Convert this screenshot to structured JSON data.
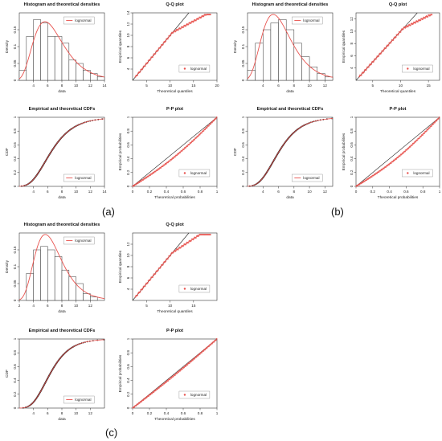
{
  "labels": {
    "a": "(a)",
    "b": "(b)",
    "c": "(c)"
  },
  "colors": {
    "red": "#e8534f",
    "frame": "#333333",
    "bar": "#ffffff",
    "fit": "#cc2b2b"
  },
  "chart_data": [
    {
      "panel": "a",
      "type": "histogram",
      "title": "Histogram and theoretical densities",
      "xlabel": "data",
      "ylabel": "Density",
      "xlim": [
        2,
        14
      ],
      "ylim": [
        0,
        0.2
      ],
      "xticks": [
        4,
        6,
        8,
        10,
        12,
        14
      ],
      "yticks": [
        0,
        0.05,
        0.1,
        0.15
      ],
      "bins": [
        [
          2,
          3,
          0.03
        ],
        [
          3,
          4,
          0.13
        ],
        [
          4,
          5,
          0.18
        ],
        [
          5,
          6,
          0.17
        ],
        [
          6,
          7,
          0.13
        ],
        [
          7,
          8,
          0.13
        ],
        [
          8,
          9,
          0.11
        ],
        [
          9,
          10,
          0.06
        ],
        [
          10,
          11,
          0.05
        ],
        [
          11,
          12,
          0.03
        ],
        [
          12,
          13,
          0.02
        ],
        [
          13,
          14,
          0.01
        ]
      ],
      "fit": {
        "name": "lognormal",
        "meanlog": 1.87,
        "sdlog": 0.38
      }
    },
    {
      "panel": "a",
      "type": "scatter",
      "title": "Q-Q plot",
      "xlabel": "Theoretical quantiles",
      "ylabel": "Empirical quantiles",
      "xlim": [
        2,
        20
      ],
      "ylim": [
        2,
        14
      ],
      "xticks": [
        5,
        10,
        15,
        20
      ],
      "yticks": [
        4,
        6,
        8,
        10,
        12,
        14
      ],
      "legend": "lognormal",
      "kind": "qq",
      "tail": "down"
    },
    {
      "panel": "a",
      "type": "line",
      "title": "Empirical and theoretical CDFs",
      "xlabel": "data",
      "ylabel": "CDF",
      "xlim": [
        2,
        14
      ],
      "ylim": [
        0,
        1
      ],
      "xticks": [
        4,
        6,
        8,
        10,
        12,
        14
      ],
      "yticks": [
        0,
        0.2,
        0.4,
        0.6,
        0.8,
        1
      ],
      "legend": "lognormal",
      "fit": {
        "meanlog": 1.87,
        "sdlog": 0.38
      }
    },
    {
      "panel": "a",
      "type": "scatter",
      "title": "P-P plot",
      "xlabel": "Theoretical probabilities",
      "ylabel": "Empirical probabilities",
      "xlim": [
        0,
        1
      ],
      "ylim": [
        0,
        1
      ],
      "xticks": [
        0,
        0.2,
        0.4,
        0.6,
        0.8,
        1
      ],
      "yticks": [
        0,
        0.2,
        0.4,
        0.6,
        0.8,
        1
      ],
      "legend": "lognormal",
      "kind": "pp",
      "sag": 0.07
    },
    {
      "panel": "b",
      "type": "histogram",
      "title": "Histogram and theoretical densities",
      "xlabel": "data",
      "ylabel": "Density",
      "xlim": [
        2,
        13
      ],
      "ylim": [
        0,
        0.2
      ],
      "xticks": [
        4,
        6,
        8,
        10,
        12
      ],
      "yticks": [
        0,
        0.05,
        0.1,
        0.15
      ],
      "bins": [
        [
          2,
          3,
          0.03
        ],
        [
          3,
          4,
          0.11
        ],
        [
          4,
          5,
          0.15
        ],
        [
          5,
          6,
          0.17
        ],
        [
          6,
          7,
          0.18
        ],
        [
          7,
          8,
          0.15
        ],
        [
          8,
          9,
          0.11
        ],
        [
          9,
          10,
          0.07
        ],
        [
          10,
          11,
          0.04
        ],
        [
          11,
          12,
          0.02
        ],
        [
          12,
          13,
          0.01
        ]
      ],
      "fit": {
        "name": "lognormal",
        "meanlog": 1.8,
        "sdlog": 0.36
      }
    },
    {
      "panel": "b",
      "type": "scatter",
      "title": "Q-Q plot",
      "xlabel": "Theoretical quantiles",
      "ylabel": "Empirical quantiles",
      "xlim": [
        2,
        17
      ],
      "ylim": [
        2,
        13
      ],
      "xticks": [
        5,
        10,
        15
      ],
      "yticks": [
        4,
        6,
        8,
        10,
        12
      ],
      "legend": "lognormal",
      "kind": "qq",
      "tail": "down"
    },
    {
      "panel": "b",
      "type": "line",
      "title": "Empirical and theoretical CDFs",
      "xlabel": "data",
      "ylabel": "CDF",
      "xlim": [
        2,
        13
      ],
      "ylim": [
        0,
        1
      ],
      "xticks": [
        4,
        6,
        8,
        10,
        12
      ],
      "yticks": [
        0,
        0.2,
        0.4,
        0.6,
        0.8,
        1
      ],
      "legend": "lognormal",
      "fit": {
        "meanlog": 1.8,
        "sdlog": 0.36
      }
    },
    {
      "panel": "b",
      "type": "scatter",
      "title": "P-P plot",
      "xlabel": "Theoretical probabilities",
      "ylabel": "Empirical probabilities",
      "xlim": [
        0,
        1
      ],
      "ylim": [
        0,
        1
      ],
      "xticks": [
        0,
        0.2,
        0.4,
        0.6,
        0.8,
        1
      ],
      "yticks": [
        0,
        0.2,
        0.4,
        0.6,
        0.8,
        1
      ],
      "legend": "lognormal",
      "kind": "pp",
      "sag": 0.08
    },
    {
      "panel": "c",
      "type": "histogram",
      "title": "Histogram and theoretical densities",
      "xlabel": "data",
      "ylabel": "Density",
      "xlim": [
        2,
        14
      ],
      "ylim": [
        0,
        0.2
      ],
      "xticks": [
        2,
        4,
        6,
        8,
        10,
        12
      ],
      "yticks": [
        0,
        0.05,
        0.1,
        0.15
      ],
      "bins": [
        [
          3,
          4,
          0.08
        ],
        [
          4,
          5,
          0.15
        ],
        [
          5,
          6,
          0.16
        ],
        [
          6,
          7,
          0.15
        ],
        [
          7,
          8,
          0.13
        ],
        [
          8,
          9,
          0.09
        ],
        [
          9,
          10,
          0.07
        ],
        [
          10,
          11,
          0.05
        ],
        [
          11,
          12,
          0.02
        ],
        [
          12,
          13,
          0.01
        ]
      ],
      "fit": {
        "name": "lognormal",
        "meanlog": 1.85,
        "sdlog": 0.34
      }
    },
    {
      "panel": "c",
      "type": "scatter",
      "title": "Q-Q plot",
      "xlabel": "Theoretical quantiles",
      "ylabel": "Empirical quantiles",
      "xlim": [
        2,
        20
      ],
      "ylim": [
        2,
        14
      ],
      "xticks": [
        5,
        10,
        15
      ],
      "yticks": [
        4,
        6,
        8,
        10,
        12
      ],
      "legend": "lognormal",
      "kind": "qq",
      "tail": "up"
    },
    {
      "panel": "c",
      "type": "line",
      "title": "Empirical and theoretical CDFs",
      "xlabel": "data",
      "ylabel": "CDF",
      "xlim": [
        2,
        14
      ],
      "ylim": [
        0,
        1
      ],
      "xticks": [
        4,
        6,
        8,
        10,
        12
      ],
      "yticks": [
        0,
        0.2,
        0.4,
        0.6,
        0.8,
        1
      ],
      "legend": "lognormal",
      "fit": {
        "meanlog": 1.85,
        "sdlog": 0.34
      }
    },
    {
      "panel": "c",
      "type": "scatter",
      "title": "P-P plot",
      "xlabel": "Theoretical probabilities",
      "ylabel": "Empirical probabilities",
      "xlim": [
        0,
        1
      ],
      "ylim": [
        0,
        1
      ],
      "xticks": [
        0,
        0.2,
        0.4,
        0.6,
        0.8,
        1
      ],
      "yticks": [
        0,
        0.2,
        0.4,
        0.6,
        0.8,
        1
      ],
      "legend": "lognormal",
      "kind": "pp",
      "sag": 0.02
    }
  ]
}
